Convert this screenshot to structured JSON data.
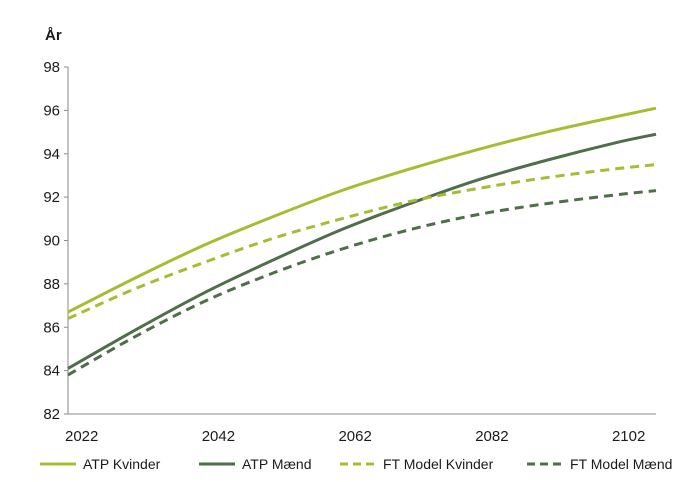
{
  "chart_data": {
    "type": "line",
    "title": "",
    "xlabel": "",
    "ylabel": "År",
    "xlim": [
      2020,
      2106
    ],
    "ylim": [
      82,
      98
    ],
    "x_ticks": [
      2022,
      2042,
      2062,
      2082,
      2102
    ],
    "y_ticks": [
      82,
      84,
      86,
      88,
      90,
      92,
      94,
      96,
      98
    ],
    "grid": false,
    "legend_position": "bottom",
    "x": [
      2020,
      2030,
      2040,
      2050,
      2060,
      2070,
      2080,
      2090,
      2100,
      2106
    ],
    "series": [
      {
        "name": "ATP Kvinder",
        "color": "#a5bd31",
        "dash": "solid",
        "values": [
          86.7,
          88.3,
          89.8,
          91.1,
          92.3,
          93.3,
          94.2,
          95.0,
          95.7,
          96.1
        ]
      },
      {
        "name": "ATP Mænd",
        "color": "#4f6e4a",
        "dash": "solid",
        "values": [
          84.1,
          85.9,
          87.6,
          89.1,
          90.5,
          91.7,
          92.8,
          93.7,
          94.5,
          94.9
        ]
      },
      {
        "name": "FT Model Kvinder",
        "color": "#a5bd31",
        "dash": "dashed",
        "values": [
          86.4,
          87.8,
          89.0,
          90.1,
          91.0,
          91.8,
          92.4,
          92.9,
          93.3,
          93.5
        ]
      },
      {
        "name": "FT Model Mænd",
        "color": "#4f6e4a",
        "dash": "dashed",
        "values": [
          83.8,
          85.6,
          87.2,
          88.5,
          89.6,
          90.5,
          91.2,
          91.7,
          92.1,
          92.3
        ]
      }
    ]
  }
}
